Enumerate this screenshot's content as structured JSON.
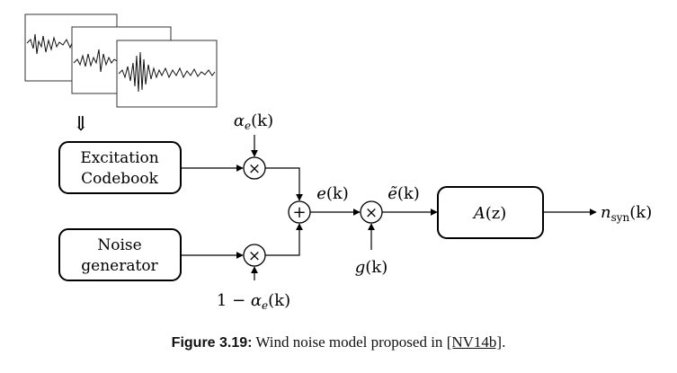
{
  "blocks": {
    "excitation_codebook": {
      "line1": "Excitation",
      "line2": "Codebook"
    },
    "noise_generator": {
      "line1": "Noise",
      "line2": "generator"
    },
    "filter": {
      "label_base": "A",
      "label_rest": "(z)"
    }
  },
  "operators": {
    "multiply": "×",
    "add": "+"
  },
  "signals": {
    "alpha_top": {
      "base": "α",
      "sub": "e",
      "rest": "(k)"
    },
    "alpha_bottom": {
      "prefix": "1 − ",
      "base": "α",
      "sub": "e",
      "rest": "(k)"
    },
    "e": {
      "base": "e",
      "rest": "(k)"
    },
    "e_tilde": {
      "base": "ẽ",
      "rest": "(k)"
    },
    "g": {
      "base": "g",
      "rest": "(k)"
    },
    "n_syn": {
      "base": "n",
      "sub": "syn",
      "rest": "(k)"
    }
  },
  "arrow_glyph": "⇓",
  "caption": {
    "label": "Figure 3.19:",
    "text": " Wind noise model proposed in ",
    "citation": "[NV14b]",
    "end": "."
  }
}
